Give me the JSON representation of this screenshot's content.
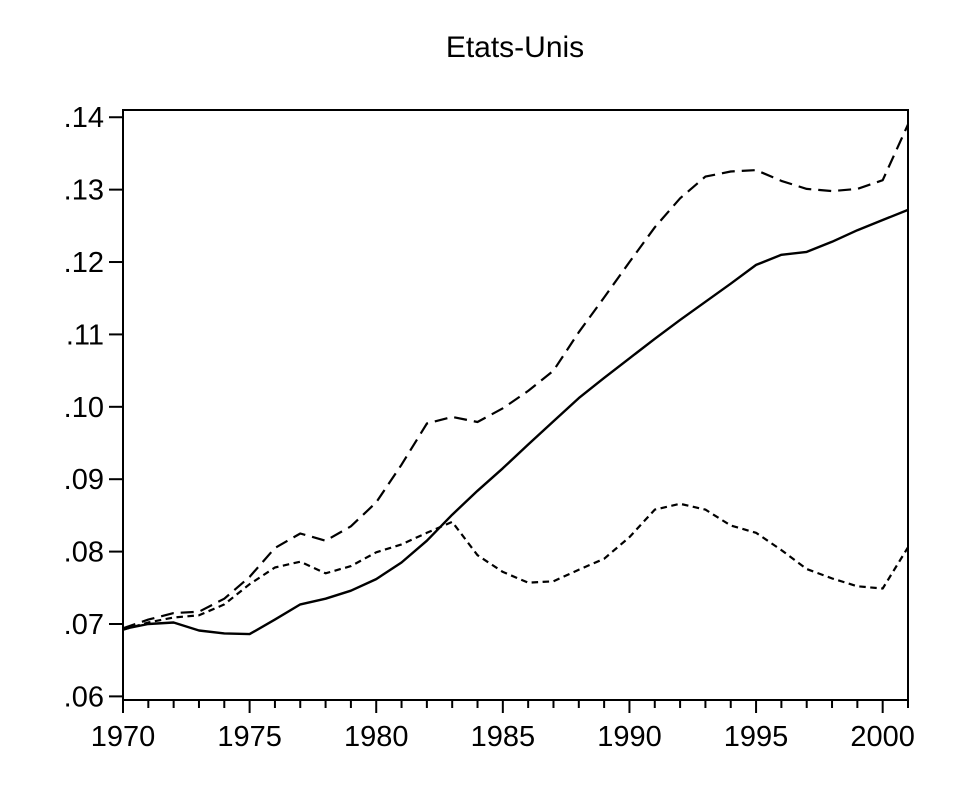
{
  "chart_data": {
    "type": "line",
    "title": "Etats-Unis",
    "xlabel": "",
    "ylabel": "",
    "grid": false,
    "legend": "none",
    "colors": {
      "line": "#000000",
      "background": "#ffffff"
    },
    "xlim": [
      1970,
      2001
    ],
    "ylim": [
      0.0595,
      0.141
    ],
    "x_major_ticks": [
      {
        "label": "1970",
        "value": 1970
      },
      {
        "label": "1975",
        "value": 1975
      },
      {
        "label": "1980",
        "value": 1980
      },
      {
        "label": "1985",
        "value": 1985
      },
      {
        "label": "1990",
        "value": 1990
      },
      {
        "label": "1995",
        "value": 1995
      },
      {
        "label": "2000",
        "value": 2000
      }
    ],
    "y_ticks": [
      {
        "label": ".06",
        "value": 0.06
      },
      {
        "label": ".07",
        "value": 0.07
      },
      {
        "label": ".08",
        "value": 0.08
      },
      {
        "label": ".09",
        "value": 0.09
      },
      {
        "label": ".10",
        "value": 0.1
      },
      {
        "label": ".11",
        "value": 0.11
      },
      {
        "label": ".12",
        "value": 0.12
      },
      {
        "label": ".13",
        "value": 0.13
      },
      {
        "label": ".14",
        "value": 0.14
      }
    ],
    "x": [
      1970,
      1971,
      1972,
      1973,
      1974,
      1975,
      1976,
      1977,
      1978,
      1979,
      1980,
      1981,
      1982,
      1983,
      1984,
      1985,
      1986,
      1987,
      1988,
      1989,
      1990,
      1991,
      1992,
      1993,
      1994,
      1995,
      1996,
      1997,
      1998,
      1999,
      2000,
      2001
    ],
    "series": [
      {
        "name": "solid-series",
        "style": "solid",
        "values": [
          0.0693,
          0.07,
          0.0702,
          0.0691,
          0.0687,
          0.0686,
          0.0706,
          0.0727,
          0.0735,
          0.0746,
          0.0762,
          0.0785,
          0.0815,
          0.0851,
          0.0884,
          0.0915,
          0.0948,
          0.098,
          0.1012,
          0.104,
          0.1067,
          0.1094,
          0.112,
          0.1145,
          0.117,
          0.1196,
          0.121,
          0.1214,
          0.1228,
          0.1244,
          0.1258,
          0.1272
        ]
      },
      {
        "name": "upper-long-dash-series",
        "style": "long-dash",
        "values": [
          0.0694,
          0.0706,
          0.0715,
          0.0717,
          0.0735,
          0.0765,
          0.0805,
          0.0825,
          0.0815,
          0.0835,
          0.0868,
          0.092,
          0.0977,
          0.0986,
          0.0979,
          0.0998,
          0.1022,
          0.105,
          0.1103,
          0.1151,
          0.12,
          0.1248,
          0.1288,
          0.1318,
          0.1325,
          0.1327,
          0.1312,
          0.1301,
          0.1298,
          0.1301,
          0.1313,
          0.139
        ]
      },
      {
        "name": "lower-short-dash-series",
        "style": "short-dash",
        "values": [
          0.0692,
          0.0702,
          0.0709,
          0.0712,
          0.0727,
          0.0755,
          0.0778,
          0.0786,
          0.077,
          0.078,
          0.0799,
          0.081,
          0.0826,
          0.0841,
          0.0795,
          0.0772,
          0.0757,
          0.0759,
          0.0775,
          0.079,
          0.082,
          0.0858,
          0.0866,
          0.0858,
          0.0836,
          0.0826,
          0.0802,
          0.0776,
          0.0763,
          0.0752,
          0.0749,
          0.0806
        ]
      }
    ]
  }
}
